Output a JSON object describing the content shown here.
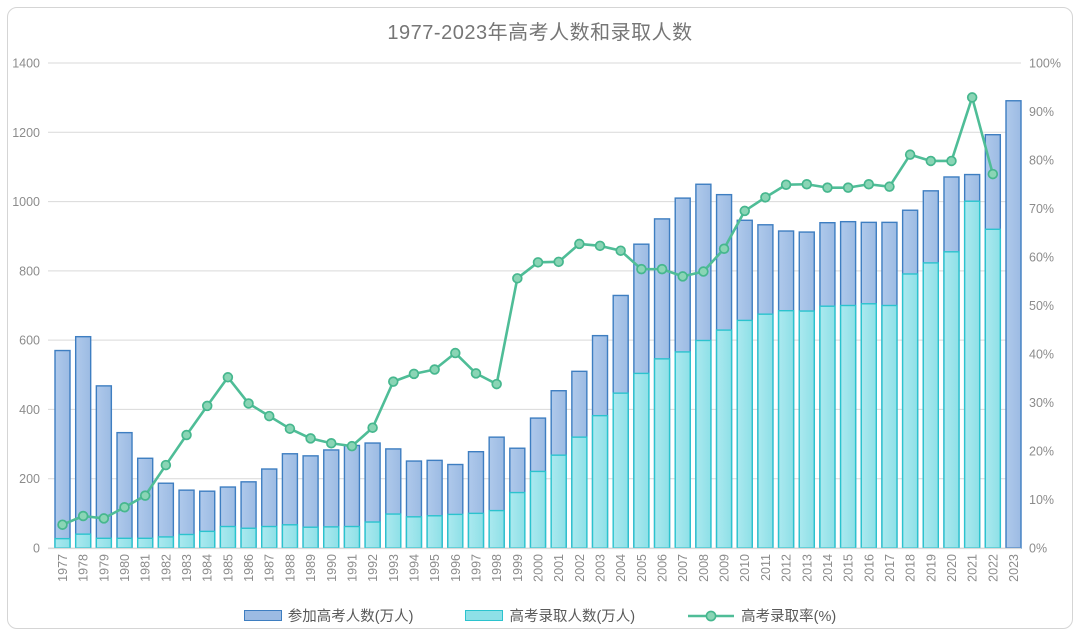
{
  "header": {
    "title": "1977-2023年高考人数和录取人数"
  },
  "chart_data": {
    "type": "combo-bar-line",
    "title": "1977-2023年高考人数和录取人数",
    "x": [
      1977,
      1978,
      1979,
      1980,
      1981,
      1982,
      1983,
      1984,
      1985,
      1986,
      1987,
      1988,
      1989,
      1990,
      1991,
      1992,
      1993,
      1994,
      1995,
      1996,
      1997,
      1998,
      1999,
      2000,
      2001,
      2002,
      2003,
      2004,
      2005,
      2006,
      2007,
      2008,
      2009,
      2010,
      2011,
      2012,
      2013,
      2014,
      2015,
      2016,
      2017,
      2018,
      2019,
      2020,
      2021,
      2022,
      2023
    ],
    "series": [
      {
        "name": "参加高考人数(万人)",
        "type": "bar",
        "axis": "left",
        "fill": "#9CBBE3",
        "fill_light": "#AFC9EB",
        "border": "#3E7EC1",
        "values": [
          570,
          610,
          468,
          333,
          259,
          187,
          167,
          164,
          176,
          191,
          228,
          272,
          266,
          283,
          296,
          303,
          286,
          251,
          253,
          241,
          278,
          320,
          288,
          375,
          454,
          510,
          613,
          729,
          877,
          950,
          1010,
          1050,
          1020,
          946,
          933,
          915,
          912,
          939,
          942,
          940,
          940,
          975,
          1031,
          1071,
          1078,
          1193,
          1291
        ]
      },
      {
        "name": "高考录取人数(万人)",
        "type": "bar",
        "axis": "left",
        "fill": "#8EE0E7",
        "fill_light": "#ABE9EF",
        "border": "#2BC3CE",
        "values": [
          27,
          40,
          28,
          28,
          28,
          32,
          39,
          48,
          62,
          57,
          62,
          67,
          60,
          61,
          62,
          75,
          98,
          90,
          93,
          97,
          100,
          108,
          160,
          221,
          268,
          320,
          382,
          447,
          504,
          546,
          566,
          599,
          629,
          657,
          675,
          685,
          684,
          698,
          700,
          705,
          700,
          791,
          823,
          855,
          1001,
          920,
          null
        ]
      },
      {
        "name": "高考录取率(%)",
        "type": "line",
        "axis": "right",
        "color": "#4FBD97",
        "marker_fill": "#8AD5B5",
        "marker_border": "#46B78E",
        "values": [
          4.8,
          6.6,
          6.1,
          8.4,
          10.8,
          17.1,
          23.3,
          29.3,
          35.2,
          29.8,
          27.2,
          24.6,
          22.6,
          21.6,
          21.0,
          24.8,
          34.3,
          35.9,
          36.8,
          40.2,
          36.0,
          33.8,
          55.6,
          58.9,
          59.0,
          62.7,
          62.3,
          61.3,
          57.5,
          57.5,
          56.0,
          57.0,
          61.7,
          69.5,
          72.3,
          74.9,
          75.0,
          74.3,
          74.3,
          75.0,
          74.5,
          81.1,
          79.8,
          79.8,
          92.9,
          77.1,
          null
        ]
      }
    ],
    "left_axis": {
      "min": 0,
      "max": 1400,
      "step": 200,
      "tick_labels": [
        "0",
        "200",
        "400",
        "600",
        "800",
        "1000",
        "1200",
        "1400"
      ]
    },
    "right_axis": {
      "min": 0,
      "max": 100,
      "step": 10,
      "tick_labels": [
        "0%",
        "10%",
        "20%",
        "30%",
        "40%",
        "50%",
        "60%",
        "70%",
        "80%",
        "90%",
        "100%"
      ]
    },
    "grid": true,
    "legend_position": "bottom",
    "colors": {
      "gridline": "#d9d9d9",
      "axis_line": "#d9d9d9",
      "tick_text": "#8c8c8c",
      "title_text": "#767676",
      "legend_text": "#595959"
    }
  }
}
